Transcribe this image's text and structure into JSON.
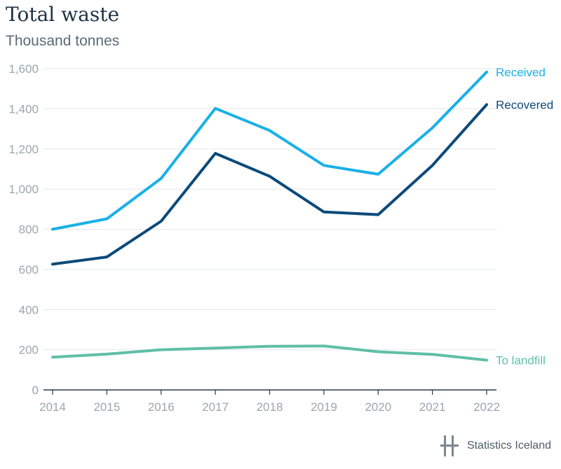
{
  "chart_data": {
    "type": "line",
    "title": "Total waste",
    "subtitle": "Thousand tonnes",
    "x": [
      "2014",
      "2015",
      "2016",
      "2017",
      "2018",
      "2019",
      "2020",
      "2021",
      "2022"
    ],
    "ylim": [
      0,
      1600
    ],
    "yticks": [
      "0",
      "200",
      "400",
      "600",
      "800",
      "1,000",
      "1,200",
      "1,400",
      "1,600"
    ],
    "grid": true,
    "series": [
      {
        "name": "Received",
        "color": "#1ab0e8",
        "values": [
          800,
          852,
          1053,
          1402,
          1292,
          1118,
          1074,
          1305,
          1583
        ]
      },
      {
        "name": "Recovered",
        "color": "#0c4a7a",
        "values": [
          626,
          662,
          840,
          1178,
          1064,
          886,
          873,
          1118,
          1421
        ]
      },
      {
        "name": "To landfill",
        "color": "#5fbfa6",
        "values": [
          163,
          178,
          200,
          208,
          217,
          219,
          190,
          177,
          148
        ]
      }
    ]
  },
  "footer": {
    "source": "Statistics Iceland"
  }
}
